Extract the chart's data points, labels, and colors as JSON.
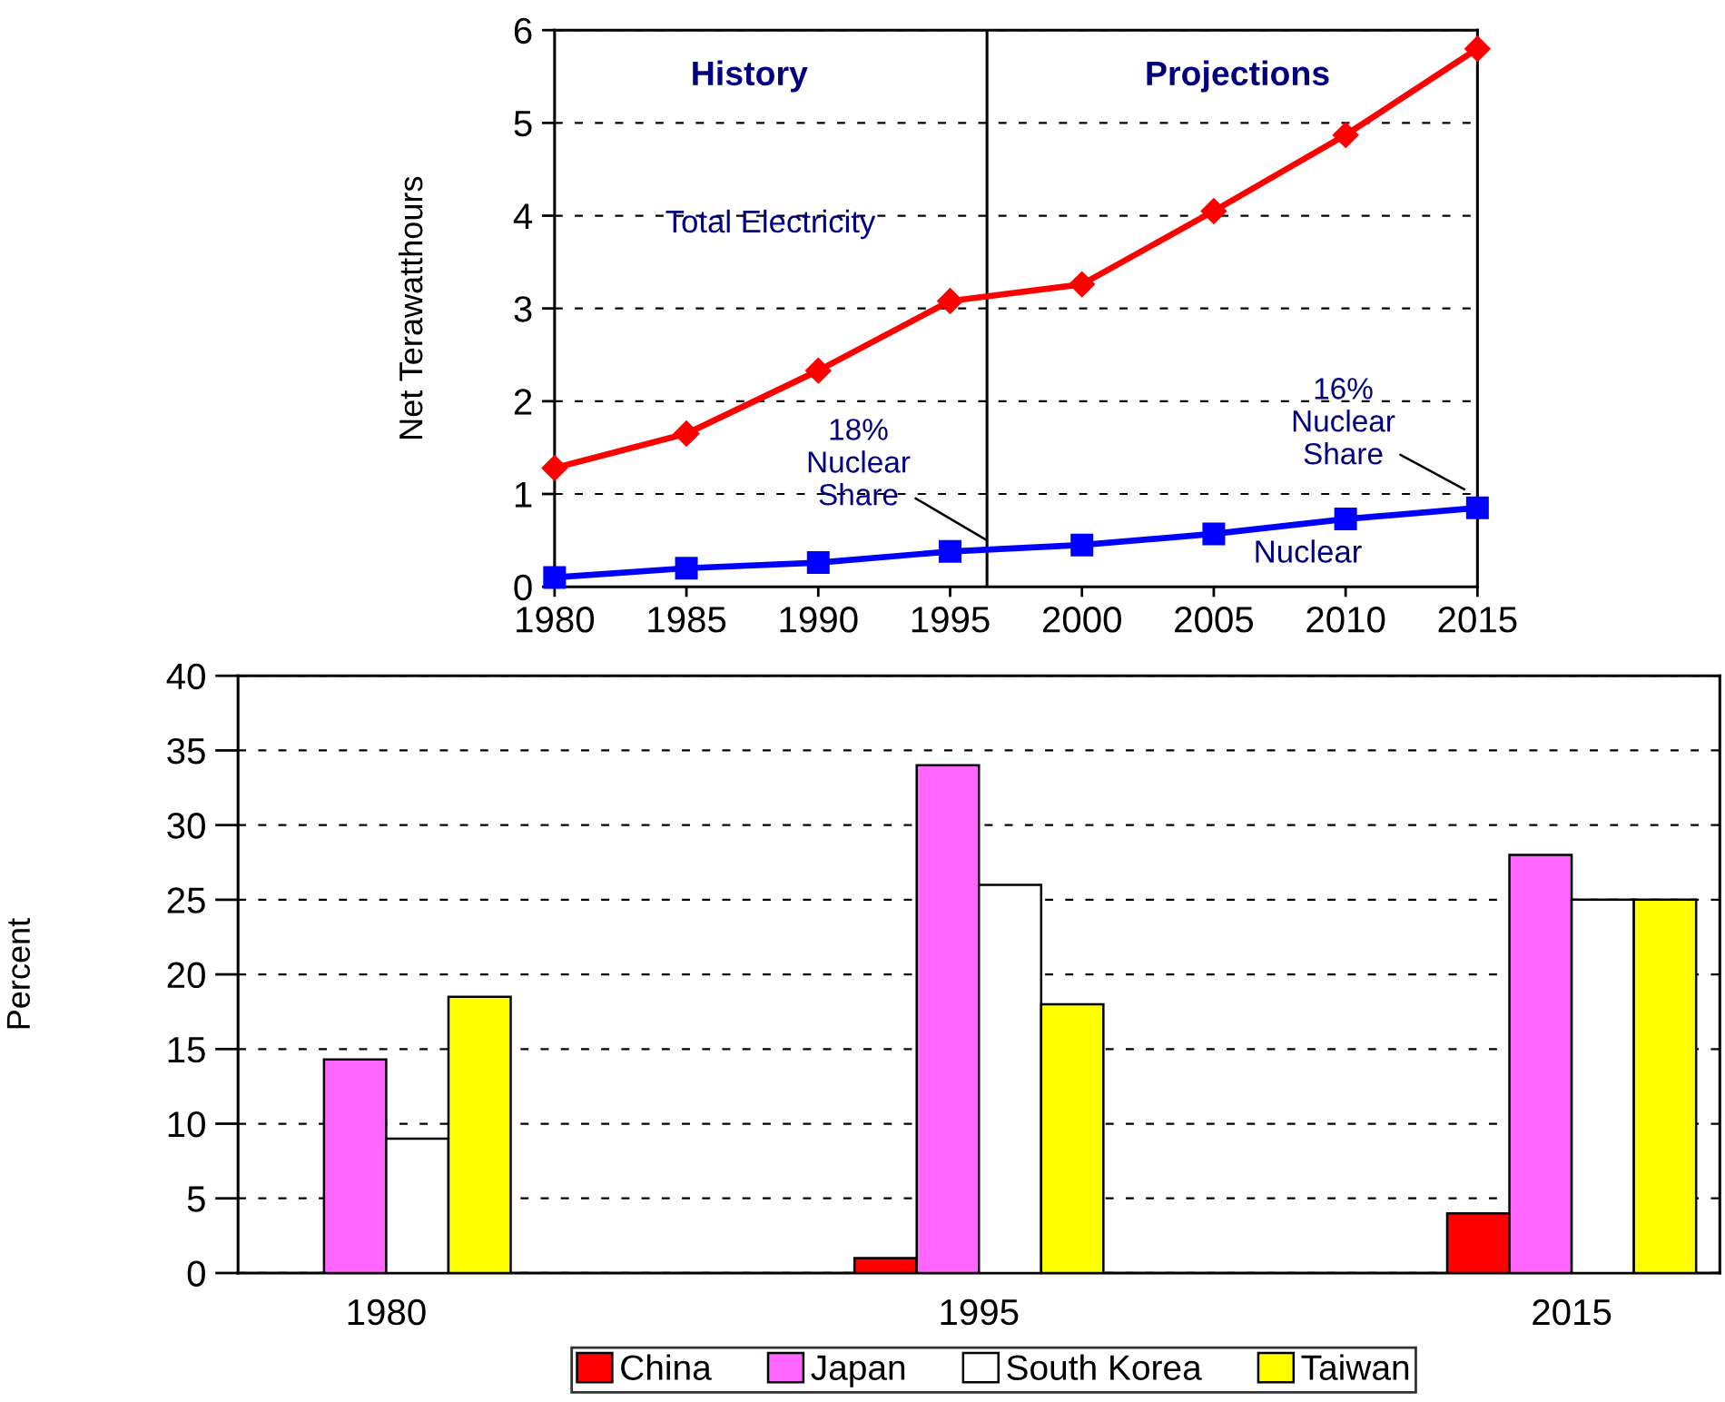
{
  "chart_data": [
    {
      "type": "line",
      "ylabel": "Net Terawatthours",
      "x": [
        1980,
        1985,
        1990,
        1995,
        2000,
        2005,
        2010,
        2015
      ],
      "series": [
        {
          "name": "Total Electricity",
          "color": "#ff0000",
          "marker": "diamond",
          "values": [
            1.28,
            1.65,
            2.33,
            3.08,
            3.26,
            4.05,
            4.87,
            5.8
          ]
        },
        {
          "name": "Nuclear",
          "color": "#0000ff",
          "marker": "square",
          "values": [
            0.1,
            0.2,
            0.26,
            0.38,
            0.45,
            0.57,
            0.73,
            0.85
          ]
        }
      ],
      "xlim": [
        1980,
        2015
      ],
      "ylim": [
        0,
        6
      ],
      "xticks": [
        1980,
        1985,
        1990,
        1995,
        2000,
        2005,
        2010,
        2015
      ],
      "yticks": [
        0,
        1,
        2,
        3,
        4,
        5,
        6
      ],
      "grid": "y",
      "line_style": "solid",
      "ref_lines": [
        {
          "axis": "x",
          "value": 1996.4,
          "color": "#000000"
        }
      ],
      "annotations": [
        "History",
        "Projections",
        {
          "text": "18%\nNuclear\nShare",
          "x": 1996.4,
          "y": 0.5
        },
        {
          "text": "16%\nNuclear\nShare",
          "x": 2014.5,
          "y": 1.05
        }
      ]
    },
    {
      "type": "bar",
      "ylabel": "Percent",
      "categories": [
        "1980",
        "1995",
        "2015"
      ],
      "series": [
        {
          "name": "China",
          "color": "#ff0000",
          "values": [
            null,
            1,
            4
          ]
        },
        {
          "name": "Japan",
          "color": "#ff66ff",
          "values": [
            14.3,
            34,
            28
          ]
        },
        {
          "name": "South Korea",
          "color": "#ffffff",
          "values": [
            9,
            26,
            25
          ]
        },
        {
          "name": "Taiwan",
          "color": "#ffff00",
          "values": [
            18.5,
            18,
            25
          ]
        }
      ],
      "ylim": [
        0,
        40
      ],
      "yticks": [
        0,
        5,
        10,
        15,
        20,
        25,
        30,
        35,
        40
      ],
      "grid": "y",
      "legend": "bottom"
    }
  ]
}
